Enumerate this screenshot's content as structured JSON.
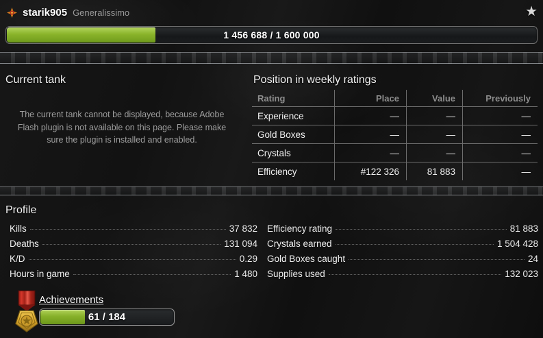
{
  "header": {
    "username": "starik905",
    "rank": "Generalissimo",
    "xp_progress": {
      "label": "1 456 688 / 1 600 000",
      "percent": 28
    }
  },
  "current_tank": {
    "title": "Current tank",
    "message": "The current tank cannot be displayed, because Adobe Flash plugin is not available on this page. Please make sure the plugin is installed and enabled."
  },
  "weekly_ratings": {
    "title": "Position in weekly ratings",
    "columns": [
      "Rating",
      "Place",
      "Value",
      "Previously"
    ],
    "rows": [
      {
        "rating": "Experience",
        "place": "—",
        "value": "—",
        "previously": "—"
      },
      {
        "rating": "Gold Boxes",
        "place": "—",
        "value": "—",
        "previously": "—"
      },
      {
        "rating": "Crystals",
        "place": "—",
        "value": "—",
        "previously": "—"
      },
      {
        "rating": "Efficiency",
        "place": "#122 326",
        "value": "81 883",
        "previously": "—"
      }
    ]
  },
  "profile": {
    "title": "Profile",
    "left_stats": [
      {
        "label": "Kills",
        "value": "37 832"
      },
      {
        "label": "Deaths",
        "value": "131 094"
      },
      {
        "label": "K/D",
        "value": "0.29"
      },
      {
        "label": "Hours in game",
        "value": "1 480"
      }
    ],
    "right_stats": [
      {
        "label": "Efficiency rating",
        "value": "81 883"
      },
      {
        "label": "Crystals earned",
        "value": "1 504 428"
      },
      {
        "label": "Gold Boxes caught",
        "value": "24"
      },
      {
        "label": "Supplies used",
        "value": "132 023"
      }
    ]
  },
  "achievements": {
    "title": "Achievements",
    "progress_label": "61 / 184",
    "percent": 33
  },
  "icons": {
    "rank_icon": "rank-star-icon",
    "favorite_icon": "star-icon",
    "medal_icon": "achievements-medal-icon",
    "favorite_glyph": "★"
  },
  "colors": {
    "progress_green": "#86b029",
    "background": "#121212",
    "muted_text": "#9e9e9e",
    "table_line": "#d7d7d7"
  }
}
